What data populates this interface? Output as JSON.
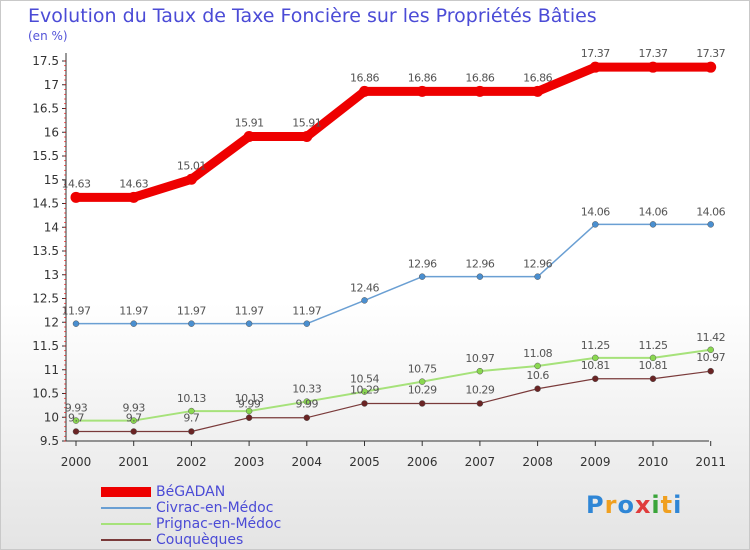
{
  "title": "Evolution du Taux de Taxe Foncière sur les Propriétés Bâties",
  "unit_label": "(en %)",
  "logo": "Proxiti",
  "chart_data": {
    "type": "line",
    "title": "Evolution du Taux de Taxe Foncière sur les Propriétés Bâties",
    "ylabel": "(en %)",
    "xlabel": "",
    "x": [
      "2000",
      "2001",
      "2002",
      "2003",
      "2004",
      "2005",
      "2006",
      "2007",
      "2008",
      "2009",
      "2010",
      "2011"
    ],
    "ylim": [
      9.5,
      17.5
    ],
    "yticks": [
      9.5,
      10,
      10.5,
      11,
      11.5,
      12,
      12.5,
      13,
      13.5,
      14,
      14.5,
      15,
      15.5,
      16,
      16.5,
      17,
      17.5
    ],
    "grid": false,
    "legend_position": "bottom-left",
    "series": [
      {
        "name": "BéGADAN",
        "color": "#ee0000",
        "values": [
          14.63,
          14.63,
          15.01,
          15.91,
          15.91,
          16.86,
          16.86,
          16.86,
          16.86,
          17.37,
          17.37,
          17.37
        ]
      },
      {
        "name": "Civrac-en-Médoc",
        "color": "#6a9fd3",
        "values": [
          11.97,
          11.97,
          11.97,
          11.97,
          11.97,
          12.46,
          12.96,
          12.96,
          12.96,
          14.06,
          14.06,
          14.06
        ]
      },
      {
        "name": "Prignac-en-Médoc",
        "color": "#a6e27a",
        "values": [
          9.93,
          9.93,
          10.13,
          10.13,
          10.33,
          10.54,
          10.75,
          10.97,
          11.08,
          11.25,
          11.25,
          11.42
        ]
      },
      {
        "name": "Couquèques",
        "color": "#7a3a3a",
        "values": [
          9.7,
          9.7,
          9.7,
          9.99,
          9.99,
          10.29,
          10.29,
          10.29,
          10.6,
          10.81,
          10.81,
          10.97
        ]
      }
    ]
  }
}
